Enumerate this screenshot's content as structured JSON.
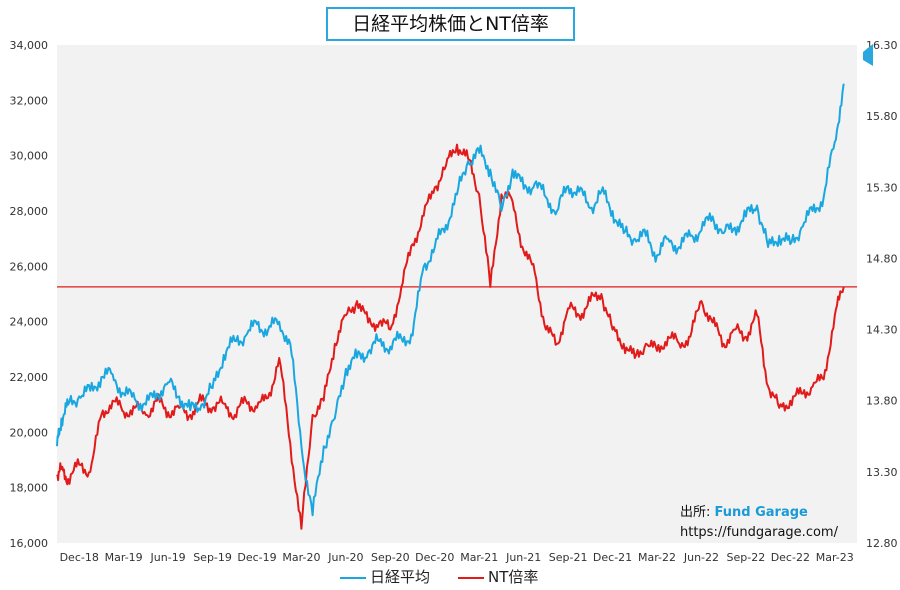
{
  "title": "日経平均株価とNT倍率",
  "source": {
    "prefix": "出所:",
    "brand": "Fund Garage",
    "url": "https://fundgarage.com/"
  },
  "colors": {
    "nikkei": "#1aa7e0",
    "nt": "#e11a1a",
    "plot_bg": "#f2f2f2",
    "baseline": "#e11a1a"
  },
  "chart_data": {
    "type": "line",
    "title": "日経平均株価とNT倍率",
    "xlabel": "",
    "ylabel": "",
    "x_ticks": [
      "Dec-18",
      "Mar-19",
      "Jun-19",
      "Sep-19",
      "Dec-19",
      "Mar-20",
      "Jun-20",
      "Sep-20",
      "Dec-20",
      "Mar-21",
      "Jun-21",
      "Sep-21",
      "Dec-21",
      "Mar-22",
      "Jun-22",
      "Sep-22",
      "Dec-22",
      "Mar-23"
    ],
    "y_left": {
      "min": 16000,
      "max": 34000,
      "ticks": [
        "16,000",
        "18,000",
        "20,000",
        "22,000",
        "24,000",
        "26,000",
        "28,000",
        "30,000",
        "32,000",
        "34,000"
      ]
    },
    "y_right": {
      "min": 12.8,
      "max": 16.3,
      "ticks": [
        "12.80",
        "13.30",
        "13.80",
        "14.30",
        "14.80",
        "15.30",
        "15.80",
        "16.30"
      ]
    },
    "grid": false,
    "legend_position": "bottom",
    "reference_line": {
      "axis": "right",
      "value": 14.6
    },
    "series": [
      {
        "name": "日経平均",
        "axis": "left",
        "x": [
          0,
          0.1,
          0.25,
          0.5,
          0.75,
          1,
          1.25,
          1.5,
          1.75,
          2,
          2.25,
          2.5,
          2.75,
          3,
          3.25,
          3.5,
          3.75,
          4,
          4.25,
          4.5,
          4.75,
          5,
          5.25,
          5.5,
          5.75,
          6,
          6.25,
          6.5,
          6.75,
          7,
          7.25,
          7.5,
          7.75,
          8,
          8.25,
          8.5,
          8.75,
          9,
          9.25,
          9.5,
          9.75,
          10,
          10.25,
          10.5,
          10.75,
          11,
          11.25,
          11.5,
          11.75,
          12,
          12.25,
          12.5,
          12.75,
          13,
          13.25,
          13.5,
          13.75,
          14,
          14.25,
          14.5,
          14.75,
          15,
          15.25,
          15.5,
          15.75,
          16,
          16.25,
          16.5,
          16.75,
          17,
          17.25,
          17.5,
          17.7
        ],
        "values": [
          19500,
          20500,
          21000,
          21300,
          21500,
          22000,
          22100,
          21400,
          21200,
          21000,
          21400,
          21800,
          21300,
          20800,
          21000,
          21600,
          22800,
          23300,
          23500,
          23900,
          23700,
          24000,
          23200,
          19500,
          17000,
          19500,
          20500,
          22300,
          22700,
          22900,
          23300,
          23100,
          23400,
          23500,
          26000,
          26700,
          27500,
          28600,
          29800,
          30100,
          29500,
          28000,
          29500,
          28800,
          29000,
          28500,
          28000,
          28900,
          28700,
          28100,
          28700,
          28000,
          27200,
          27000,
          27100,
          26400,
          27000,
          26700,
          27100,
          27300,
          27800,
          27200,
          27400,
          27800,
          28200,
          26700,
          27100,
          26800,
          27400,
          28000,
          28500,
          30500,
          32600
        ]
      },
      {
        "name": "NT倍率",
        "axis": "right",
        "x": [
          0,
          0.1,
          0.25,
          0.5,
          0.75,
          1,
          1.25,
          1.5,
          1.75,
          2,
          2.25,
          2.5,
          2.75,
          3,
          3.25,
          3.5,
          3.75,
          4,
          4.25,
          4.5,
          4.75,
          5,
          5.25,
          5.5,
          5.75,
          6,
          6.25,
          6.5,
          6.75,
          7,
          7.25,
          7.5,
          7.75,
          8,
          8.25,
          8.5,
          8.75,
          9,
          9.25,
          9.5,
          9.75,
          10,
          10.25,
          10.5,
          10.75,
          11,
          11.25,
          11.5,
          11.75,
          12,
          12.25,
          12.5,
          12.75,
          13,
          13.25,
          13.5,
          13.75,
          14,
          14.25,
          14.5,
          14.75,
          15,
          15.25,
          15.5,
          15.75,
          16,
          16.25,
          16.5,
          16.75,
          17,
          17.25,
          17.5,
          17.7
        ],
        "values": [
          13.28,
          13.32,
          13.25,
          13.35,
          13.3,
          13.7,
          13.8,
          13.72,
          13.75,
          13.7,
          13.8,
          13.72,
          13.75,
          13.7,
          13.8,
          13.75,
          13.78,
          13.7,
          13.8,
          13.75,
          13.82,
          14.1,
          13.5,
          12.9,
          13.7,
          13.8,
          14.2,
          14.4,
          14.5,
          14.35,
          14.35,
          14.3,
          14.6,
          14.9,
          15.1,
          15.3,
          15.45,
          15.6,
          15.5,
          15.25,
          14.6,
          15.25,
          15.2,
          14.85,
          14.7,
          14.3,
          14.2,
          14.45,
          14.4,
          14.5,
          14.55,
          14.3,
          14.2,
          14.1,
          14.2,
          14.15,
          14.25,
          14.2,
          14.25,
          14.5,
          14.35,
          14.2,
          14.3,
          14.25,
          14.4,
          13.9,
          13.75,
          13.8,
          13.85,
          13.9,
          13.95,
          14.4,
          14.6
        ]
      }
    ]
  },
  "legend": [
    {
      "label": "日経平均",
      "color": "#1aa7e0"
    },
    {
      "label": "NT倍率",
      "color": "#e11a1a"
    }
  ],
  "arrow_color": "#29a8e0"
}
